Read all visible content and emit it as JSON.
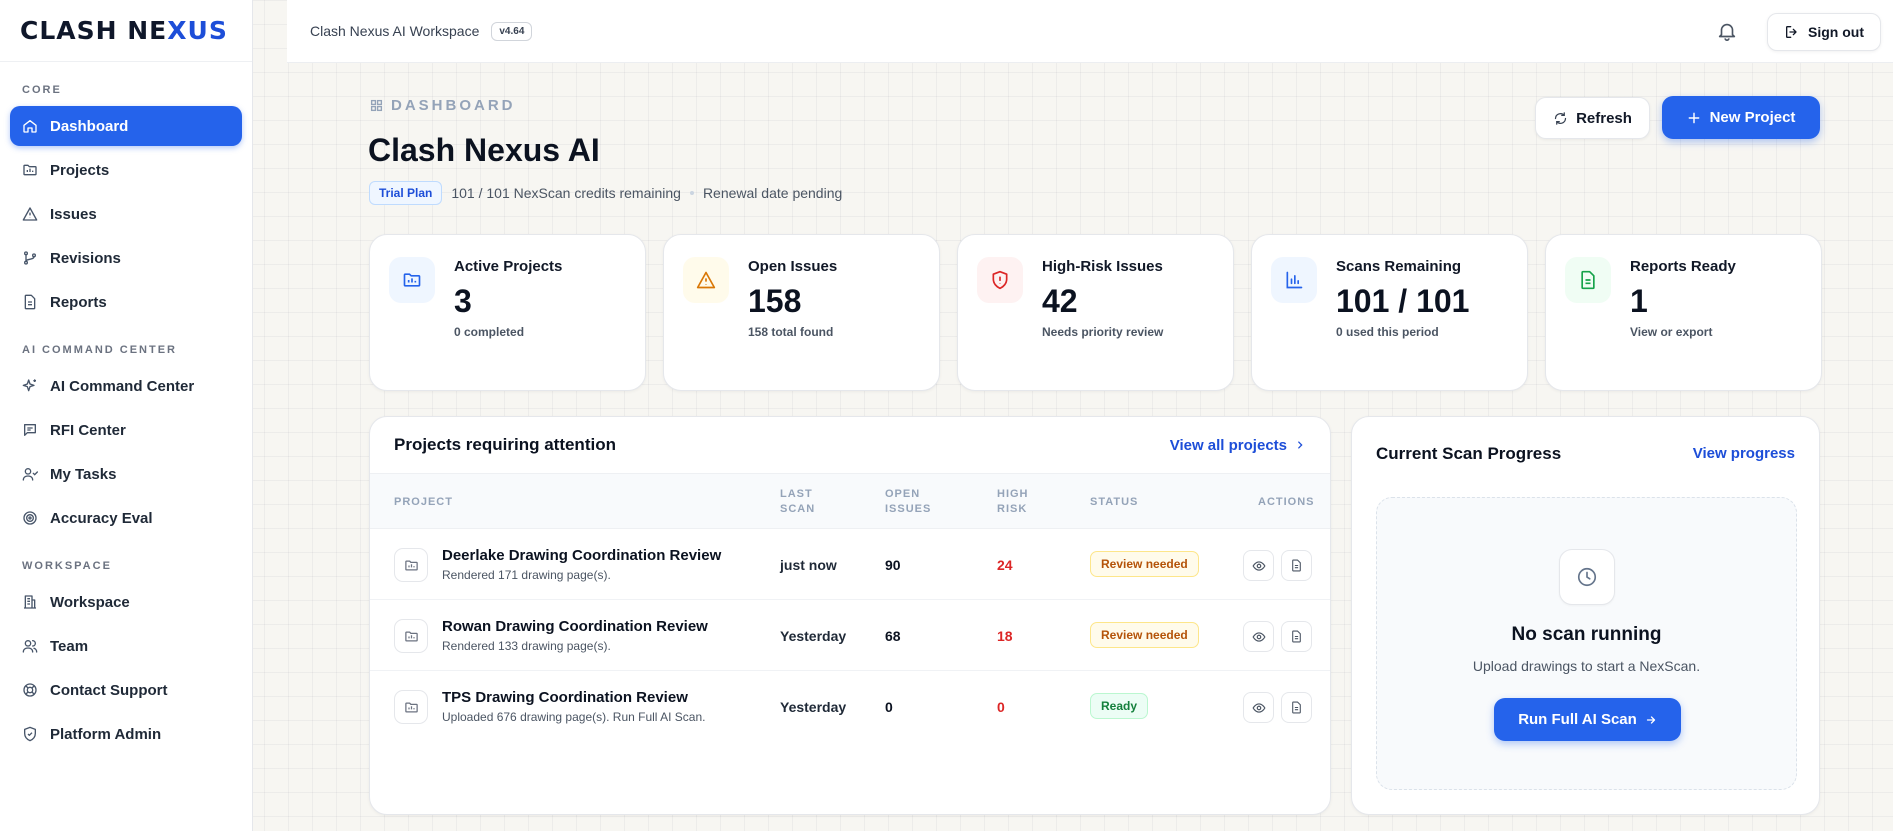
{
  "brand": {
    "logo_text_a": "CLASH NE",
    "logo_text_b": "XUS"
  },
  "sidebar": {
    "sections": [
      {
        "label": "CORE"
      },
      {
        "label": "AI COMMAND CENTER"
      },
      {
        "label": "WORKSPACE"
      }
    ],
    "items": [
      {
        "label": "Dashboard",
        "icon": "home-icon"
      },
      {
        "label": "Projects",
        "icon": "folder-icon"
      },
      {
        "label": "Issues",
        "icon": "warning-icon"
      },
      {
        "label": "Revisions",
        "icon": "branch-icon"
      },
      {
        "label": "Reports",
        "icon": "document-icon"
      },
      {
        "label": "AI Command Center",
        "icon": "sparkles-icon"
      },
      {
        "label": "RFI Center",
        "icon": "message-icon"
      },
      {
        "label": "My Tasks",
        "icon": "user-check-icon"
      },
      {
        "label": "Accuracy Eval",
        "icon": "target-icon"
      },
      {
        "label": "Workspace",
        "icon": "building-icon"
      },
      {
        "label": "Team",
        "icon": "users-icon"
      },
      {
        "label": "Contact Support",
        "icon": "lifebuoy-icon"
      },
      {
        "label": "Platform Admin",
        "icon": "shield-icon"
      }
    ]
  },
  "topbar": {
    "workspace_title": "Clash Nexus AI Workspace",
    "version": "v4.64",
    "signout_label": "Sign out"
  },
  "header": {
    "crumb": "DASHBOARD",
    "title": "Clash Nexus AI",
    "plan_badge": "Trial Plan",
    "credits": "101 / 101 NexScan credits remaining",
    "renewal": "Renewal date pending",
    "refresh_label": "Refresh",
    "new_project_label": "New Project"
  },
  "stats": [
    {
      "label": "Active Projects",
      "value": "3",
      "sub": "0 completed",
      "icon": "folder-chart-icon",
      "color": "#2563eb",
      "bg": "#eff6ff"
    },
    {
      "label": "Open Issues",
      "value": "158",
      "sub": "158 total found",
      "icon": "warning-icon",
      "color": "#d97706",
      "bg": "#fffbeb"
    },
    {
      "label": "High-Risk Issues",
      "value": "42",
      "sub": "Needs priority review",
      "icon": "shield-alert-icon",
      "color": "#dc2626",
      "bg": "#fef2f2"
    },
    {
      "label": "Scans Remaining",
      "value": "101 / 101",
      "sub": "0 used this period",
      "icon": "bar-chart-icon",
      "color": "#2563eb",
      "bg": "#eff6ff"
    },
    {
      "label": "Reports Ready",
      "value": "1",
      "sub": "View or export",
      "icon": "document-icon",
      "color": "#16a34a",
      "bg": "#f0fdf4"
    }
  ],
  "projects": {
    "title": "Projects requiring attention",
    "view_all": "View all projects",
    "columns": {
      "project": "PROJECT",
      "last_scan_1": "LAST",
      "last_scan_2": "SCAN",
      "open_1": "OPEN",
      "open_2": "ISSUES",
      "risk_1": "HIGH",
      "risk_2": "RISK",
      "status": "STATUS",
      "actions": "ACTIONS"
    },
    "rows": [
      {
        "name": "Deerlake Drawing Coordination Review",
        "desc": "Rendered 171 drawing page(s).",
        "last_scan": "just now",
        "open": "90",
        "risk": "24",
        "status": "Review needed",
        "status_kind": "warn"
      },
      {
        "name": "Rowan Drawing Coordination Review",
        "desc": "Rendered 133 drawing page(s).",
        "last_scan": "Yesterday",
        "open": "68",
        "risk": "18",
        "status": "Review needed",
        "status_kind": "warn"
      },
      {
        "name": "TPS Drawing Coordination Review",
        "desc": "Uploaded 676 drawing page(s). Run Full AI Scan.",
        "last_scan": "Yesterday",
        "open": "0",
        "risk": "0",
        "status": "Ready",
        "status_kind": "ok"
      }
    ]
  },
  "scan": {
    "title": "Current Scan Progress",
    "view_progress": "View progress",
    "empty_title": "No scan running",
    "empty_sub": "Upload drawings to start a NexScan.",
    "run_label": "Run Full AI Scan"
  }
}
